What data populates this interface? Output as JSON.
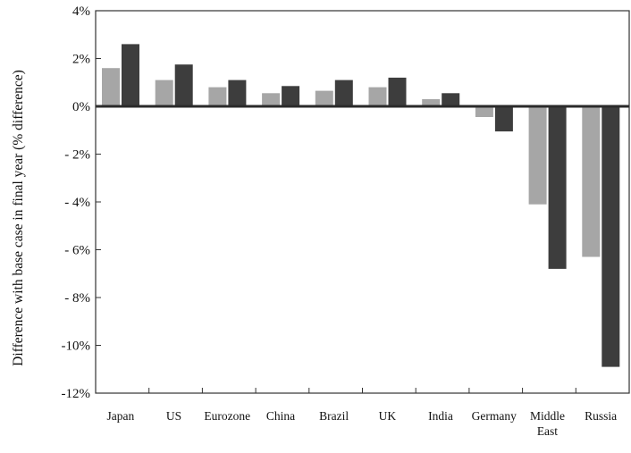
{
  "chart_data": {
    "type": "bar",
    "title": "",
    "xlabel": "",
    "ylabel": "Difference with base case in final year (% difference)",
    "ylim": [
      -12,
      4
    ],
    "yticks": [
      4,
      2,
      0,
      -2,
      -4,
      -6,
      -8,
      -10,
      -12
    ],
    "ytick_labels": [
      "4%",
      "2%",
      "0%",
      "- 2%",
      "- 4%",
      "- 6%",
      "- 8%",
      "-10%",
      "-12%"
    ],
    "grid": false,
    "legend": "none",
    "categories": [
      [
        "Japan"
      ],
      [
        "US"
      ],
      [
        "Eurozone"
      ],
      [
        "China"
      ],
      [
        "Brazil"
      ],
      [
        "UK"
      ],
      [
        "India"
      ],
      [
        "Germany"
      ],
      [
        "Middle",
        "East"
      ],
      [
        "Russia"
      ]
    ],
    "series": [
      {
        "values": [
          1.6,
          1.1,
          0.8,
          0.55,
          0.65,
          0.8,
          0.3,
          -0.45,
          -4.1,
          -6.3
        ],
        "color": "#a6a6a6"
      },
      {
        "values": [
          2.6,
          1.75,
          1.1,
          0.85,
          1.1,
          1.2,
          0.55,
          -1.05,
          -6.8,
          -10.9
        ],
        "color": "#3d3d3d"
      }
    ]
  }
}
